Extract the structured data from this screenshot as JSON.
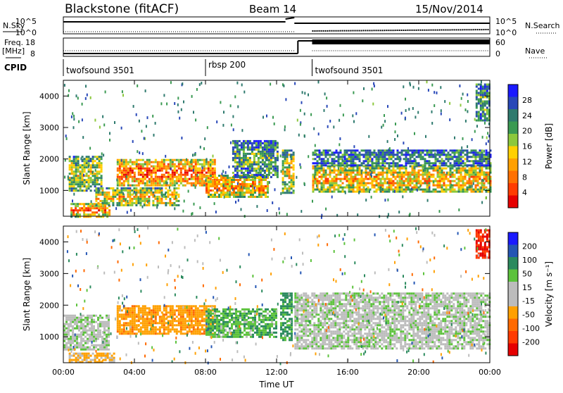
{
  "header": {
    "station": "Blackstone (fitACF)",
    "beam": "Beam 14",
    "date": "15/Nov/2014"
  },
  "top_panels": {
    "nsky_label": "N.Sky",
    "nsearch_label": "N.Search",
    "noise_ticks_left": [
      "10^5",
      "10^0"
    ],
    "noise_ticks_right": [
      "10^5",
      "10^0"
    ],
    "freq_label": "Freq.",
    "freq_unit": "[MHz]",
    "freq_ticks": [
      "18",
      "8"
    ],
    "nave_label": "Nave",
    "nave_ticks": [
      "60",
      "0"
    ],
    "cpid_label": "CPID",
    "cpid_segments": [
      {
        "name": "twofsound 3501",
        "start_hour": 0
      },
      {
        "name": "rbsp 200",
        "start_hour": 8
      },
      {
        "name": "twofsound 3501",
        "start_hour": 14
      }
    ]
  },
  "chart_data": [
    {
      "type": "heatmap",
      "title": "Power",
      "ylabel": "Slant Range [km]",
      "yticks": [
        "1000",
        "2000",
        "3000",
        "4000"
      ],
      "ylim": [
        180,
        4500
      ],
      "colorbar_label": "Power [dB]",
      "colorbar_ticks": [
        "4",
        "8",
        "12",
        "16",
        "20",
        "24",
        "28"
      ],
      "colorbar_colors": [
        "#1a1aff",
        "#2848b8",
        "#2e7a6e",
        "#3a9a52",
        "#8cc83c",
        "#ffd000",
        "#ffa000",
        "#ff7000",
        "#ff3c00",
        "#e60000"
      ],
      "regions": [
        {
          "t0": 0.3,
          "t1": 2.2,
          "r0": 1000,
          "r1": 2100,
          "level": 0.45
        },
        {
          "t0": 0.4,
          "t1": 2.6,
          "r0": 180,
          "r1": 600,
          "level": 0.7
        },
        {
          "t0": 1.8,
          "t1": 6.5,
          "r0": 500,
          "r1": 1100,
          "level": 0.55
        },
        {
          "t0": 3.0,
          "t1": 8.5,
          "r0": 1150,
          "r1": 2000,
          "level": 0.75
        },
        {
          "t0": 8.0,
          "t1": 11.5,
          "r0": 800,
          "r1": 1500,
          "level": 0.65
        },
        {
          "t0": 9.5,
          "t1": 12.0,
          "r0": 1400,
          "r1": 2600,
          "level": 0.3
        },
        {
          "t0": 12.3,
          "t1": 12.9,
          "r0": 900,
          "r1": 2300,
          "level": 0.5
        },
        {
          "t0": 14.0,
          "t1": 24.0,
          "r0": 950,
          "r1": 1800,
          "level": 0.6
        },
        {
          "t0": 14.0,
          "t1": 24.0,
          "r0": 1800,
          "r1": 2300,
          "level": 0.25
        },
        {
          "t0": 23.2,
          "t1": 24.0,
          "r0": 3200,
          "r1": 4400,
          "level": 0.3
        }
      ]
    },
    {
      "type": "heatmap",
      "title": "Velocity",
      "ylabel": "Slant Range [km]",
      "yticks": [
        "1000",
        "2000",
        "3000",
        "4000"
      ],
      "ylim": [
        180,
        4500
      ],
      "colorbar_label": "Velocity [m s⁻¹]",
      "colorbar_ticks": [
        "200",
        "100",
        "50",
        "15",
        "-15",
        "-50",
        "-100",
        "-200"
      ],
      "colorbar_colors": [
        "#1a1aff",
        "#2456b4",
        "#2b8a5e",
        "#5cc23c",
        "#bcbcbc",
        "#bcbcbc",
        "#ffa000",
        "#ff6a00",
        "#ff3a00",
        "#e60000"
      ],
      "xticks": [
        "00:00",
        "04:00",
        "08:00",
        "12:00",
        "16:00",
        "20:00",
        "00:00"
      ],
      "xlabel": "Time UT",
      "regions": [
        {
          "t0": 0.0,
          "t1": 2.5,
          "r0": 600,
          "r1": 1700,
          "vel": 0
        },
        {
          "t0": 0.3,
          "t1": 2.8,
          "r0": 200,
          "r1": 500,
          "vel": -60
        },
        {
          "t0": 3.0,
          "t1": 8.5,
          "r0": 1100,
          "r1": 2000,
          "vel": -80
        },
        {
          "t0": 8.0,
          "t1": 12.0,
          "r0": 1000,
          "r1": 1900,
          "vel": 40
        },
        {
          "t0": 12.2,
          "t1": 12.9,
          "r0": 900,
          "r1": 2400,
          "vel": 60
        },
        {
          "t0": 13.0,
          "t1": 24.0,
          "r0": 600,
          "r1": 2400,
          "vel": 0
        },
        {
          "t0": 23.2,
          "t1": 24.0,
          "r0": 3500,
          "r1": 4400,
          "vel": -200
        }
      ]
    }
  ]
}
